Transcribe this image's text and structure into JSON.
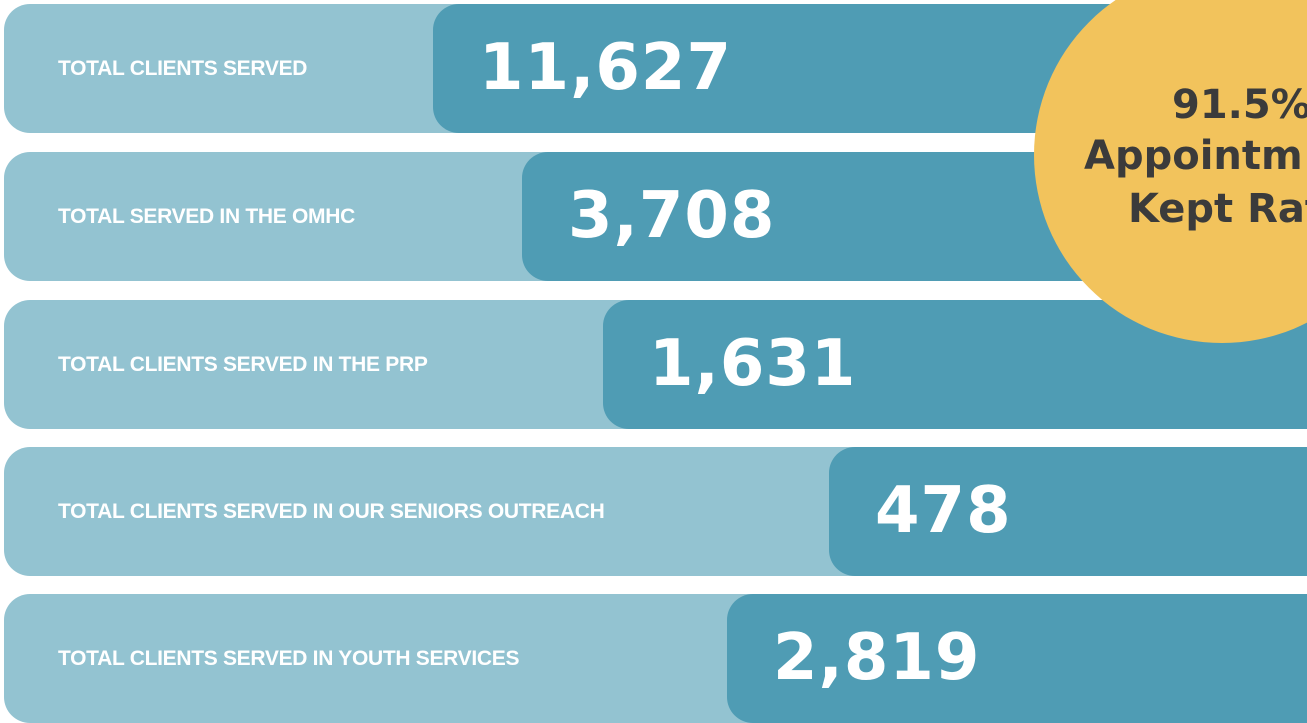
{
  "stats": [
    {
      "label": "TOTAL CLIENTS SERVED",
      "value": "11,627"
    },
    {
      "label": "TOTAL SERVED IN THE OMHC",
      "value": "3,708"
    },
    {
      "label": "TOTAL CLIENTS SERVED IN THE PRP",
      "value": "1,631"
    },
    {
      "label": "TOTAL CLIENTS SERVED IN OUR SENIORS OUTREACH",
      "value": "478"
    },
    {
      "label": "TOTAL CLIENTS SERVED IN YOUTH SERVICES",
      "value": "2,819"
    }
  ],
  "badge": {
    "value": "91.5%",
    "lines": [
      "Appointm",
      "Kept Rat"
    ]
  }
}
